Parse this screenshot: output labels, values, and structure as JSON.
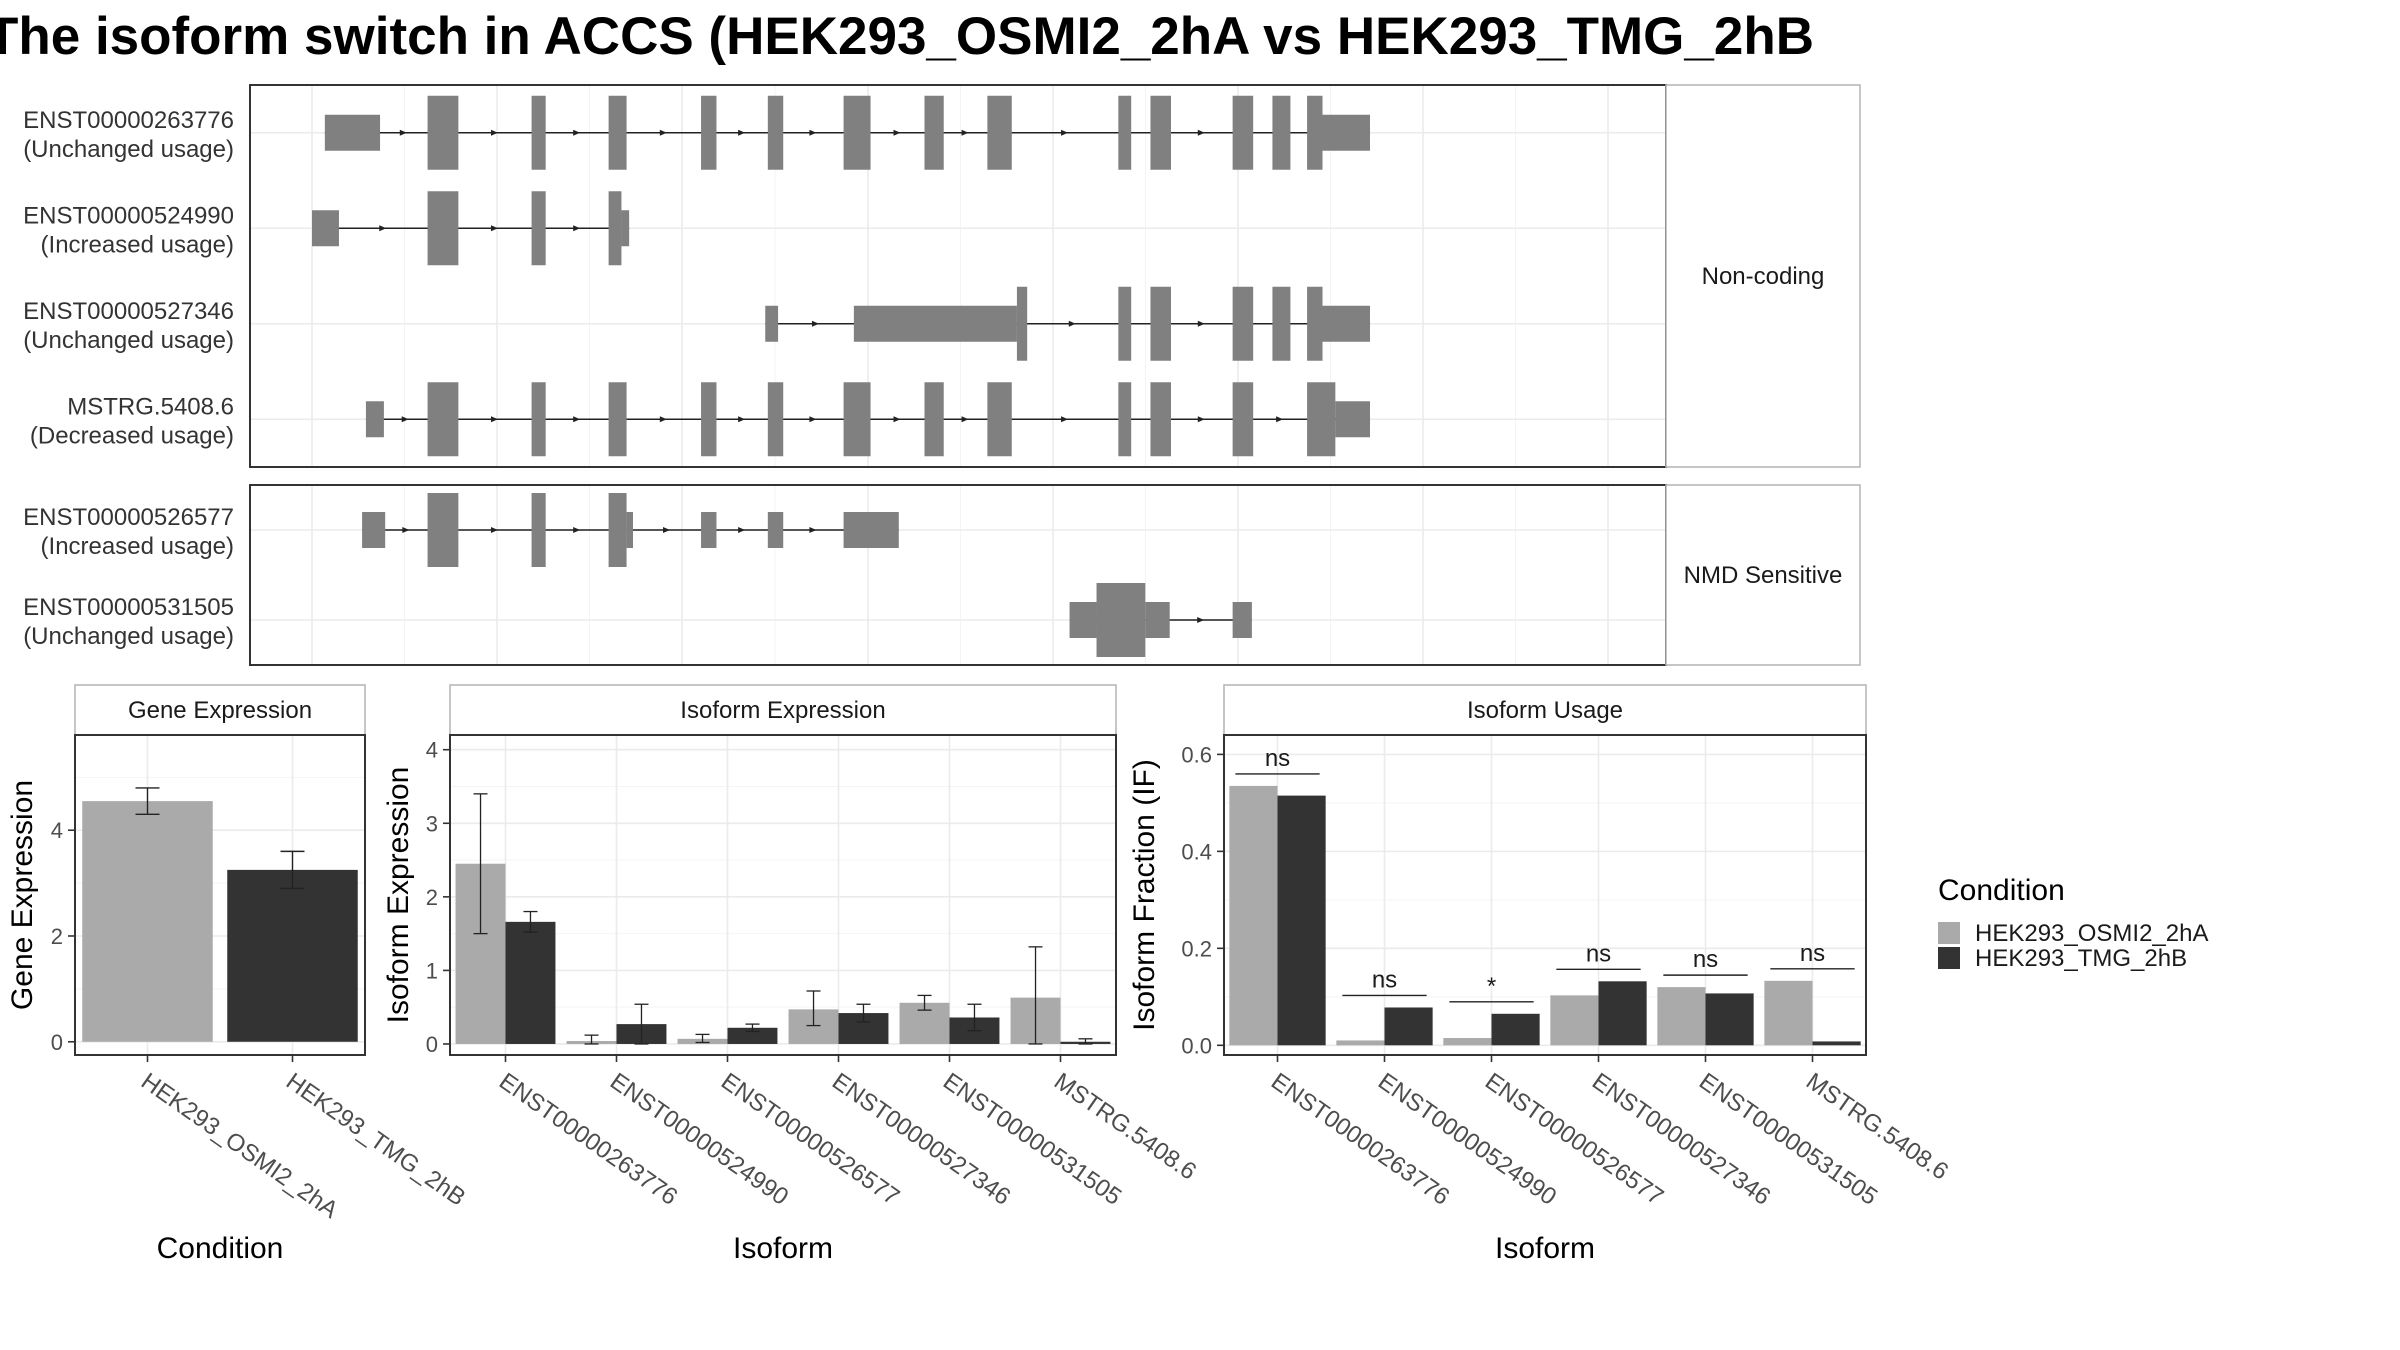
{
  "title": "The isoform switch in ACCS (HEK293_OSMI2_2hA vs HEK293_TMG_2hB",
  "chart_data": [
    {
      "type": "gene-structure",
      "facets": [
        {
          "label": "Non-coding",
          "transcripts": [
            {
              "id": "ENST00000263776",
              "usage": "(Unchanged usage)",
              "exons": [
                [
                  0.01,
                  0.053,
                  "n"
                ],
                [
                  0.09,
                  0.114,
                  "w"
                ],
                [
                  0.171,
                  0.182,
                  "w"
                ],
                [
                  0.231,
                  0.245,
                  "w"
                ],
                [
                  0.303,
                  0.315,
                  "w"
                ],
                [
                  0.355,
                  0.367,
                  "w"
                ],
                [
                  0.414,
                  0.435,
                  "w"
                ],
                [
                  0.477,
                  0.492,
                  "w"
                ],
                [
                  0.526,
                  0.545,
                  "w"
                ],
                [
                  0.628,
                  0.638,
                  "w"
                ],
                [
                  0.653,
                  0.669,
                  "w"
                ],
                [
                  0.717,
                  0.733,
                  "w"
                ],
                [
                  0.748,
                  0.762,
                  "w"
                ],
                [
                  0.775,
                  0.787,
                  "w"
                ],
                [
                  0.787,
                  0.824,
                  "n"
                ]
              ]
            },
            {
              "id": "ENST00000524990",
              "usage": "(Increased usage)",
              "exons": [
                [
                  0.0,
                  0.021,
                  "n"
                ],
                [
                  0.09,
                  0.114,
                  "w"
                ],
                [
                  0.171,
                  0.182,
                  "w"
                ],
                [
                  0.231,
                  0.241,
                  "w"
                ],
                [
                  0.241,
                  0.247,
                  "n"
                ]
              ]
            },
            {
              "id": "ENST00000527346",
              "usage": "(Unchanged usage)",
              "exons": [
                [
                  0.353,
                  0.363,
                  "n"
                ],
                [
                  0.422,
                  0.549,
                  "n"
                ],
                [
                  0.549,
                  0.557,
                  "w"
                ],
                [
                  0.628,
                  0.638,
                  "w"
                ],
                [
                  0.653,
                  0.669,
                  "w"
                ],
                [
                  0.717,
                  0.733,
                  "w"
                ],
                [
                  0.748,
                  0.762,
                  "w"
                ],
                [
                  0.775,
                  0.787,
                  "w"
                ],
                [
                  0.787,
                  0.824,
                  "n"
                ]
              ]
            },
            {
              "id": "MSTRG.5408.6",
              "usage": "(Decreased usage)",
              "exons": [
                [
                  0.042,
                  0.056,
                  "n"
                ],
                [
                  0.09,
                  0.114,
                  "w"
                ],
                [
                  0.171,
                  0.182,
                  "w"
                ],
                [
                  0.231,
                  0.245,
                  "w"
                ],
                [
                  0.303,
                  0.315,
                  "w"
                ],
                [
                  0.355,
                  0.367,
                  "w"
                ],
                [
                  0.414,
                  0.435,
                  "w"
                ],
                [
                  0.477,
                  0.492,
                  "w"
                ],
                [
                  0.526,
                  0.545,
                  "w"
                ],
                [
                  0.628,
                  0.638,
                  "w"
                ],
                [
                  0.653,
                  0.669,
                  "w"
                ],
                [
                  0.717,
                  0.733,
                  "w"
                ],
                [
                  0.775,
                  0.797,
                  "w"
                ],
                [
                  0.797,
                  0.824,
                  "n"
                ]
              ]
            }
          ]
        },
        {
          "label": "NMD Sensitive",
          "transcripts": [
            {
              "id": "ENST00000526577",
              "usage": "(Increased usage)",
              "exons": [
                [
                  0.039,
                  0.057,
                  "n"
                ],
                [
                  0.09,
                  0.114,
                  "w"
                ],
                [
                  0.171,
                  0.182,
                  "w"
                ],
                [
                  0.231,
                  0.245,
                  "w"
                ],
                [
                  0.245,
                  0.25,
                  "n"
                ],
                [
                  0.303,
                  0.315,
                  "n"
                ],
                [
                  0.355,
                  0.367,
                  "n"
                ],
                [
                  0.414,
                  0.457,
                  "n"
                ]
              ]
            },
            {
              "id": "ENST00000531505",
              "usage": "(Unchanged usage)",
              "exons": [
                [
                  0.59,
                  0.611,
                  "n"
                ],
                [
                  0.611,
                  0.649,
                  "w"
                ],
                [
                  0.649,
                  0.668,
                  "n"
                ],
                [
                  0.717,
                  0.732,
                  "n"
                ]
              ]
            }
          ]
        }
      ]
    },
    {
      "type": "bar",
      "panel": "Gene Expression",
      "xlabel": "Condition",
      "ylabel": "Gene Expression",
      "categories": [
        "HEK293_OSMI2_2hA",
        "HEK293_TMG_2hB"
      ],
      "values": [
        4.55,
        3.25
      ],
      "errors": [
        [
          4.3,
          4.8
        ],
        [
          2.9,
          3.6
        ]
      ],
      "ylim": [
        -0.25,
        5.8
      ],
      "yticks": [
        0,
        2,
        4
      ],
      "colors": [
        "#aaaaaa",
        "#333333"
      ]
    },
    {
      "type": "bar",
      "panel": "Isoform Expression",
      "xlabel": "Isoform",
      "ylabel": "Isoform Expression",
      "categories": [
        "ENST00000263776",
        "ENST00000524990",
        "ENST00000526577",
        "ENST00000527346",
        "ENST00000531505",
        "MSTRG.5408.6"
      ],
      "series": [
        {
          "values": [
            2.45,
            0.04,
            0.07,
            0.47,
            0.56,
            0.63
          ],
          "errors": [
            [
              1.5,
              3.4
            ],
            [
              0.0,
              0.12
            ],
            [
              0.02,
              0.13
            ],
            [
              0.25,
              0.72
            ],
            [
              0.46,
              0.66
            ],
            [
              0.0,
              1.32
            ]
          ]
        },
        {
          "values": [
            1.66,
            0.27,
            0.22,
            0.42,
            0.36,
            0.03
          ],
          "errors": [
            [
              1.52,
              1.8
            ],
            [
              0.0,
              0.54
            ],
            [
              0.17,
              0.27
            ],
            [
              0.3,
              0.54
            ],
            [
              0.18,
              0.54
            ],
            [
              0.0,
              0.07
            ]
          ]
        }
      ],
      "ylim": [
        -0.15,
        4.2
      ],
      "yticks": [
        0,
        1,
        2,
        3,
        4
      ]
    },
    {
      "type": "bar",
      "panel": "Isoform Usage",
      "xlabel": "Isoform",
      "ylabel": "Isoform Fraction (IF)",
      "categories": [
        "ENST00000263776",
        "ENST00000524990",
        "ENST00000526577",
        "ENST00000527346",
        "ENST00000531505",
        "MSTRG.5408.6"
      ],
      "series": [
        {
          "values": [
            0.535,
            0.01,
            0.015,
            0.103,
            0.12,
            0.133
          ]
        },
        {
          "values": [
            0.515,
            0.078,
            0.065,
            0.132,
            0.107,
            0.008
          ]
        }
      ],
      "significance": [
        "ns",
        "ns",
        "*",
        "ns",
        "ns",
        "ns"
      ],
      "ylim": [
        -0.02,
        0.64
      ],
      "yticks": [
        "0.0",
        "0.2",
        "0.4",
        "0.6"
      ]
    }
  ],
  "legend": {
    "title": "Condition",
    "items": [
      {
        "label": "HEK293_OSMI2_2hA",
        "color": "#aaaaaa"
      },
      {
        "label": "HEK293_TMG_2hB",
        "color": "#333333"
      }
    ]
  }
}
